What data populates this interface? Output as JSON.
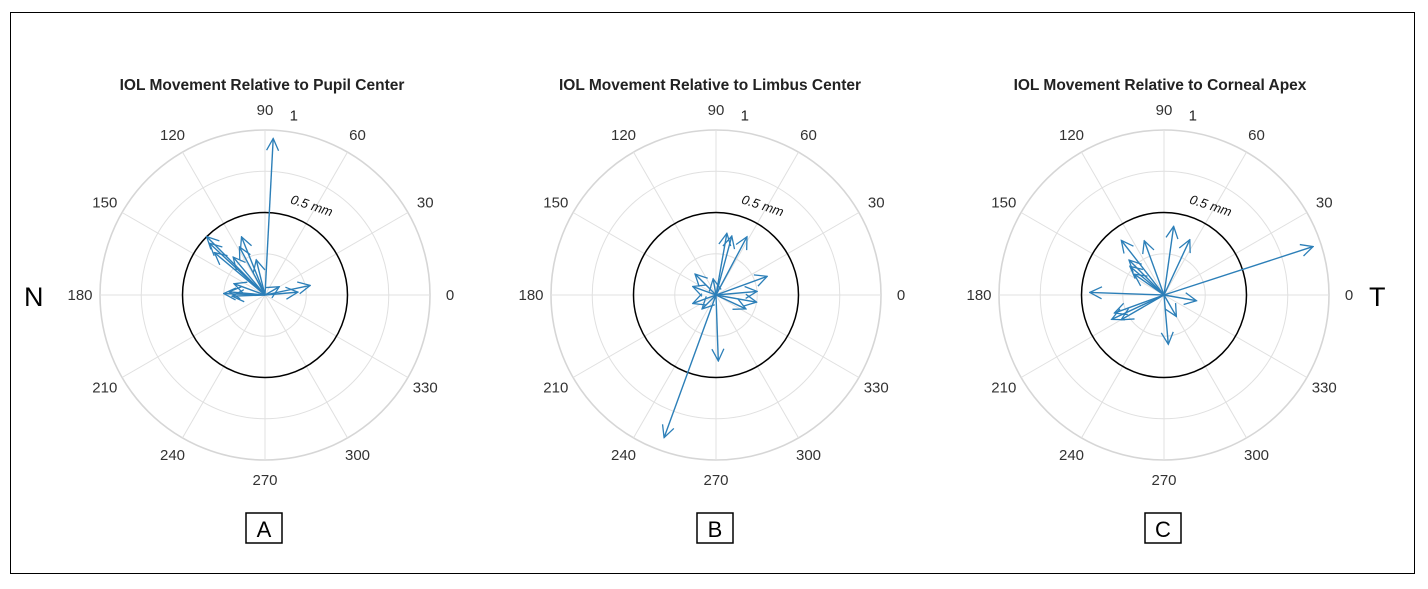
{
  "side_labels": {
    "left": "N",
    "right": "T"
  },
  "styles": {
    "arrow_color": "#2c7fb8",
    "grid_color": "#e0e0e0",
    "circle_color": "#000000"
  },
  "chart_data": [
    {
      "type": "polar-vector",
      "title": "IOL Movement Relative to Pupil Center",
      "panel_label": "A",
      "theta_ticks": [
        "0",
        "30",
        "60",
        "90",
        "120",
        "150",
        "180",
        "210",
        "240",
        "270",
        "300",
        "330"
      ],
      "r_lim": [
        0,
        1
      ],
      "r_tick_label": "1",
      "reference_circle": {
        "r": 0.5,
        "label": "0.5 mm"
      },
      "vectors": [
        {
          "theta": 87,
          "r": 0.95
        },
        {
          "theta": 135,
          "r": 0.5
        },
        {
          "theta": 137,
          "r": 0.46
        },
        {
          "theta": 140,
          "r": 0.4
        },
        {
          "theta": 130,
          "r": 0.3
        },
        {
          "theta": 118,
          "r": 0.33
        },
        {
          "theta": 112,
          "r": 0.38
        },
        {
          "theta": 104,
          "r": 0.22
        },
        {
          "theta": 160,
          "r": 0.2
        },
        {
          "theta": 175,
          "r": 0.22
        },
        {
          "theta": 178,
          "r": 0.25
        },
        {
          "theta": 182,
          "r": 0.2
        },
        {
          "theta": 12,
          "r": 0.28
        },
        {
          "theta": 5,
          "r": 0.2
        },
        {
          "theta": 30,
          "r": 0.1
        }
      ]
    },
    {
      "type": "polar-vector",
      "title": "IOL Movement Relative to Limbus Center",
      "panel_label": "B",
      "theta_ticks": [
        "0",
        "30",
        "60",
        "90",
        "120",
        "150",
        "180",
        "210",
        "240",
        "270",
        "300",
        "330"
      ],
      "r_lim": [
        0,
        1
      ],
      "r_tick_label": "1",
      "reference_circle": {
        "r": 0.5,
        "label": "0.5 mm"
      },
      "vectors": [
        {
          "theta": 250,
          "r": 0.92
        },
        {
          "theta": 272,
          "r": 0.4
        },
        {
          "theta": 62,
          "r": 0.4
        },
        {
          "theta": 75,
          "r": 0.37
        },
        {
          "theta": 80,
          "r": 0.38
        },
        {
          "theta": 20,
          "r": 0.33
        },
        {
          "theta": 5,
          "r": 0.25
        },
        {
          "theta": 135,
          "r": 0.18
        },
        {
          "theta": 160,
          "r": 0.15
        },
        {
          "theta": 200,
          "r": 0.15
        },
        {
          "theta": 225,
          "r": 0.12
        },
        {
          "theta": 335,
          "r": 0.2
        },
        {
          "theta": 350,
          "r": 0.25
        },
        {
          "theta": 100,
          "r": 0.1
        }
      ]
    },
    {
      "type": "polar-vector",
      "title": "IOL Movement Relative to Corneal Apex",
      "panel_label": "C",
      "theta_ticks": [
        "0",
        "30",
        "60",
        "90",
        "120",
        "150",
        "180",
        "210",
        "240",
        "270",
        "300",
        "330"
      ],
      "r_lim": [
        0,
        1
      ],
      "r_tick_label": "1",
      "reference_circle": {
        "r": 0.5,
        "label": "0.5 mm"
      },
      "vectors": [
        {
          "theta": 18,
          "r": 0.95
        },
        {
          "theta": 178,
          "r": 0.45
        },
        {
          "theta": 200,
          "r": 0.32
        },
        {
          "theta": 205,
          "r": 0.35
        },
        {
          "theta": 210,
          "r": 0.3
        },
        {
          "theta": 128,
          "r": 0.42
        },
        {
          "theta": 135,
          "r": 0.3
        },
        {
          "theta": 140,
          "r": 0.27
        },
        {
          "theta": 145,
          "r": 0.22
        },
        {
          "theta": 110,
          "r": 0.35
        },
        {
          "theta": 82,
          "r": 0.42
        },
        {
          "theta": 65,
          "r": 0.37
        },
        {
          "theta": 275,
          "r": 0.3
        },
        {
          "theta": 300,
          "r": 0.15
        },
        {
          "theta": 350,
          "r": 0.2
        }
      ]
    }
  ]
}
